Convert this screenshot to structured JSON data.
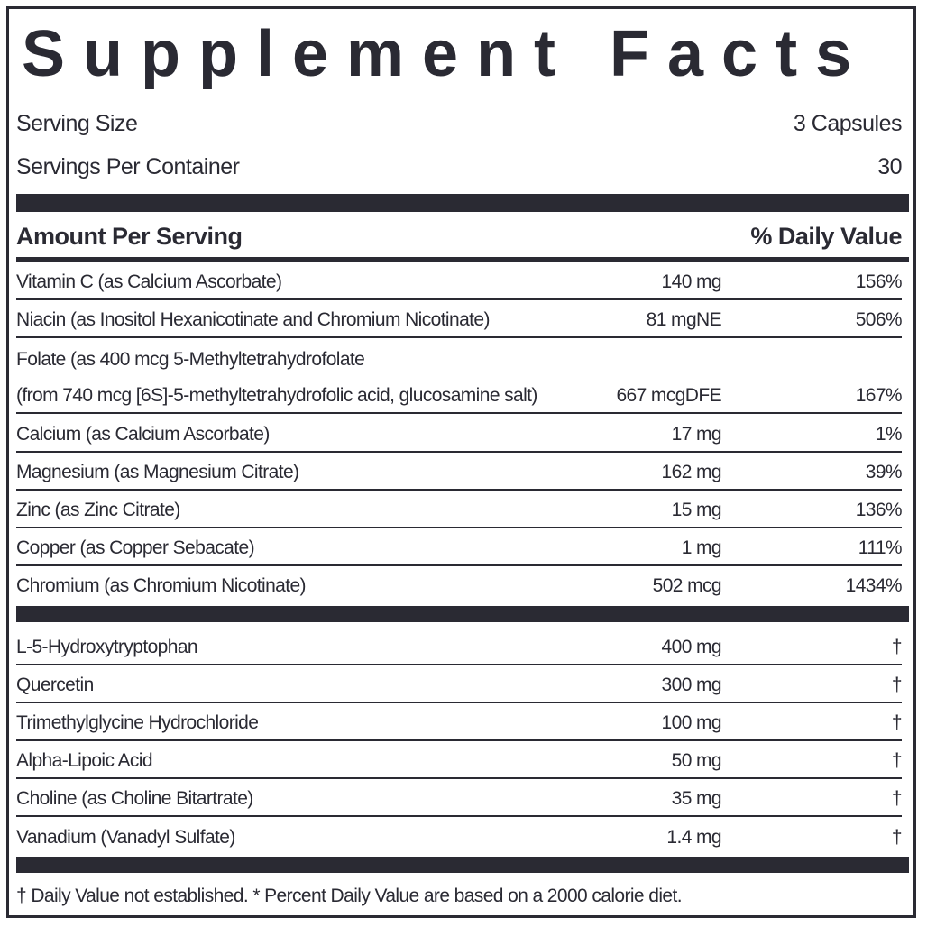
{
  "title": "Supplement Facts",
  "serving": {
    "size_label": "Serving Size",
    "size_value": "3 Capsules",
    "per_container_label": "Servings Per Container",
    "per_container_value": "30"
  },
  "header": {
    "amount": "Amount Per Serving",
    "dv": "% Daily Value"
  },
  "nutrients": [
    {
      "name": "Vitamin C (as Calcium Ascorbate)",
      "amount": "140 mg",
      "dv": "156%"
    },
    {
      "name": "Niacin (as Inositol Hexanicotinate and Chromium Nicotinate)",
      "amount": "81 mgNE",
      "dv": "506%"
    },
    {
      "name": "Folate (as 400 mcg 5-Methyltetrahydrofolate",
      "amount": "",
      "dv": ""
    },
    {
      "name": "(from 740 mcg [6S]-5-methyltetrahydrofolic acid, glucosamine salt)",
      "amount": "667 mcgDFE",
      "dv": "167%"
    },
    {
      "name": "Calcium (as Calcium Ascorbate)",
      "amount": "17 mg",
      "dv": "1%"
    },
    {
      "name": "Magnesium (as Magnesium Citrate)",
      "amount": "162 mg",
      "dv": "39%"
    },
    {
      "name": "Zinc (as Zinc Citrate)",
      "amount": "15 mg",
      "dv": "136%"
    },
    {
      "name": "Copper (as Copper Sebacate)",
      "amount": "1 mg",
      "dv": "111%"
    },
    {
      "name": "Chromium (as Chromium Nicotinate)",
      "amount": "502  mcg",
      "dv": "1434%"
    }
  ],
  "others": [
    {
      "name": "L-5-Hydroxytryptophan",
      "amount": "400 mg",
      "dv": "†"
    },
    {
      "name": "Quercetin",
      "amount": "300 mg",
      "dv": "†"
    },
    {
      "name": "Trimethylglycine Hydrochloride",
      "amount": "100 mg",
      "dv": "†"
    },
    {
      "name": "Alpha-Lipoic Acid",
      "amount": "50 mg",
      "dv": "†"
    },
    {
      "name": "Choline (as Choline Bitartrate)",
      "amount": "35 mg",
      "dv": "†"
    },
    {
      "name": "Vanadium (Vanadyl Sulfate)",
      "amount": "1.4 mg",
      "dv": "†"
    }
  ],
  "footnote": "† Daily Value not established.  * Percent Daily Value are based on a 2000 calorie diet."
}
